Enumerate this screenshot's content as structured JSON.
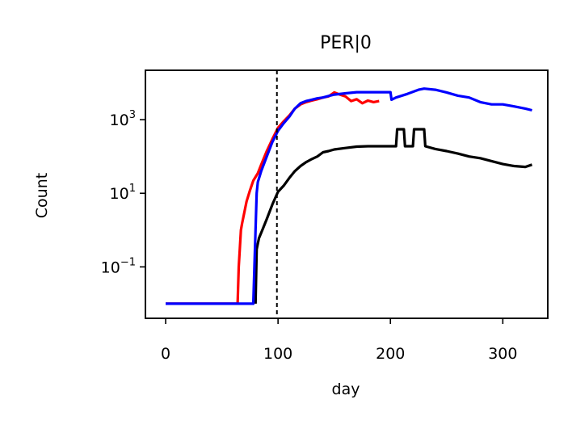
{
  "chart_data": {
    "type": "line",
    "title": "PER|0",
    "xlabel": "day",
    "ylabel": "Count",
    "yscale": "log",
    "xlim": [
      -18,
      340
    ],
    "ylim": [
      0.004,
      22000
    ],
    "xticks": [
      {
        "value": 0,
        "label": "0"
      },
      {
        "value": 100,
        "label": "100"
      },
      {
        "value": 200,
        "label": "200"
      },
      {
        "value": 300,
        "label": "300"
      }
    ],
    "yticks": [
      {
        "value": 0.1,
        "base": "10",
        "exp": "−1"
      },
      {
        "value": 10,
        "base": "10",
        "exp": "1"
      },
      {
        "value": 1000,
        "base": "10",
        "exp": "3"
      }
    ],
    "vline": {
      "x": 99,
      "color": "#000000",
      "style": "dashed"
    },
    "grid": false,
    "legend": "none",
    "series": [
      {
        "color": "#ff0000",
        "x": [
          0,
          64,
          65,
          66,
          67,
          68,
          70,
          72,
          75,
          78,
          82,
          85,
          90,
          95,
          100,
          105,
          110,
          115,
          120,
          125,
          130,
          135,
          140,
          145,
          150,
          155,
          160,
          165,
          170,
          175,
          180,
          185,
          190
        ],
        "y": [
          0.01,
          0.01,
          0.1,
          0.3,
          1,
          1.5,
          3,
          6,
          12,
          22,
          35,
          60,
          140,
          300,
          600,
          900,
          1300,
          2000,
          2600,
          3000,
          3300,
          3600,
          4000,
          4300,
          5500,
          4800,
          4300,
          3200,
          3600,
          2800,
          3300,
          3000,
          3200
        ]
      },
      {
        "color": "#000000",
        "x": [
          80,
          81,
          83,
          86,
          90,
          95,
          100,
          105,
          110,
          115,
          120,
          125,
          130,
          135,
          140,
          145,
          150,
          160,
          170,
          180,
          190,
          200,
          205,
          206,
          212,
          213,
          220,
          221,
          230,
          231,
          240,
          250,
          260,
          270,
          280,
          290,
          300,
          310,
          320,
          326
        ],
        "y": [
          0.01,
          0.3,
          0.6,
          1,
          2,
          5,
          11,
          16,
          26,
          40,
          55,
          70,
          85,
          100,
          130,
          140,
          155,
          170,
          185,
          190,
          190,
          190,
          190,
          550,
          550,
          190,
          190,
          550,
          550,
          190,
          160,
          140,
          120,
          100,
          90,
          75,
          62,
          55,
          52,
          60
        ]
      },
      {
        "color": "#0000ff",
        "x": [
          0,
          78,
          79,
          80,
          81,
          82,
          85,
          90,
          95,
          100,
          105,
          110,
          115,
          120,
          125,
          130,
          135,
          140,
          145,
          150,
          160,
          170,
          180,
          190,
          200,
          201,
          205,
          215,
          225,
          230,
          240,
          250,
          260,
          270,
          280,
          290,
          300,
          310,
          320,
          326
        ],
        "y": [
          0.01,
          0.01,
          0.1,
          1,
          10,
          20,
          40,
          100,
          250,
          500,
          800,
          1200,
          2000,
          2800,
          3200,
          3500,
          3800,
          4000,
          4400,
          4800,
          5200,
          5600,
          5600,
          5600,
          5600,
          3500,
          4000,
          5000,
          6500,
          7000,
          6500,
          5500,
          4500,
          4000,
          3000,
          2600,
          2600,
          2300,
          2000,
          1800
        ]
      }
    ]
  }
}
